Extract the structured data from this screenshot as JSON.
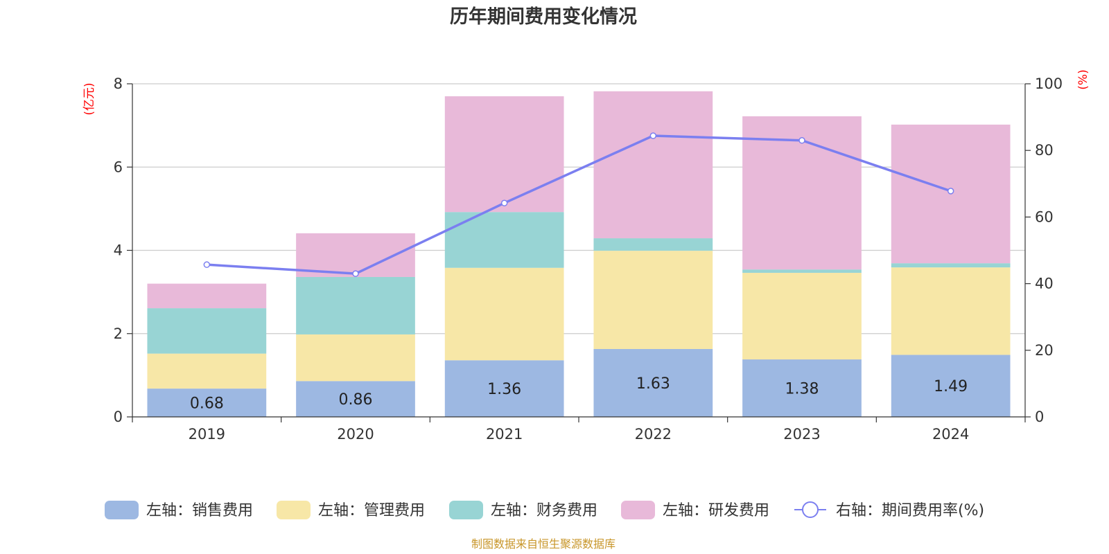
{
  "chart_data": {
    "type": "bar",
    "stacked": true,
    "title": "历年期间费用变化情况",
    "categories": [
      "2019",
      "2020",
      "2021",
      "2022",
      "2023",
      "2024"
    ],
    "left_axis": {
      "unit_label": "(亿元)",
      "ylim": [
        0,
        8
      ],
      "ticks": [
        "0",
        "2",
        "4",
        "6",
        "8"
      ]
    },
    "right_axis": {
      "unit_label": "(%)",
      "ylim": [
        0,
        100
      ],
      "ticks": [
        "0",
        "20",
        "40",
        "60",
        "80",
        "100"
      ]
    },
    "series": [
      {
        "name": "左轴：销售费用",
        "axis": "left",
        "color": "#9db8e2",
        "values": [
          0.68,
          0.86,
          1.36,
          1.63,
          1.38,
          1.49
        ],
        "labels": [
          "0.68",
          "0.86",
          "1.36",
          "1.63",
          "1.38",
          "1.49"
        ]
      },
      {
        "name": "左轴：管理费用",
        "axis": "left",
        "color": "#f7e7a7",
        "values": [
          0.84,
          1.12,
          2.22,
          2.36,
          2.08,
          2.1
        ]
      },
      {
        "name": "左轴：财务费用",
        "axis": "left",
        "color": "#98d4d4",
        "values": [
          1.09,
          1.38,
          1.34,
          0.3,
          0.08,
          0.1
        ]
      },
      {
        "name": "左轴：研发费用",
        "axis": "left",
        "color": "#e8b9d9",
        "values": [
          0.59,
          1.05,
          2.78,
          3.53,
          3.68,
          3.33
        ]
      },
      {
        "name": "右轴：期间费用率(%)",
        "axis": "right",
        "type": "line",
        "color": "#7b7ff0",
        "values": [
          45.7,
          43.0,
          64.2,
          84.4,
          83.0,
          67.8
        ]
      }
    ],
    "grid": true,
    "legend_position": "bottom"
  },
  "footer": {
    "source": "制图数据来自恒生聚源数据库"
  }
}
